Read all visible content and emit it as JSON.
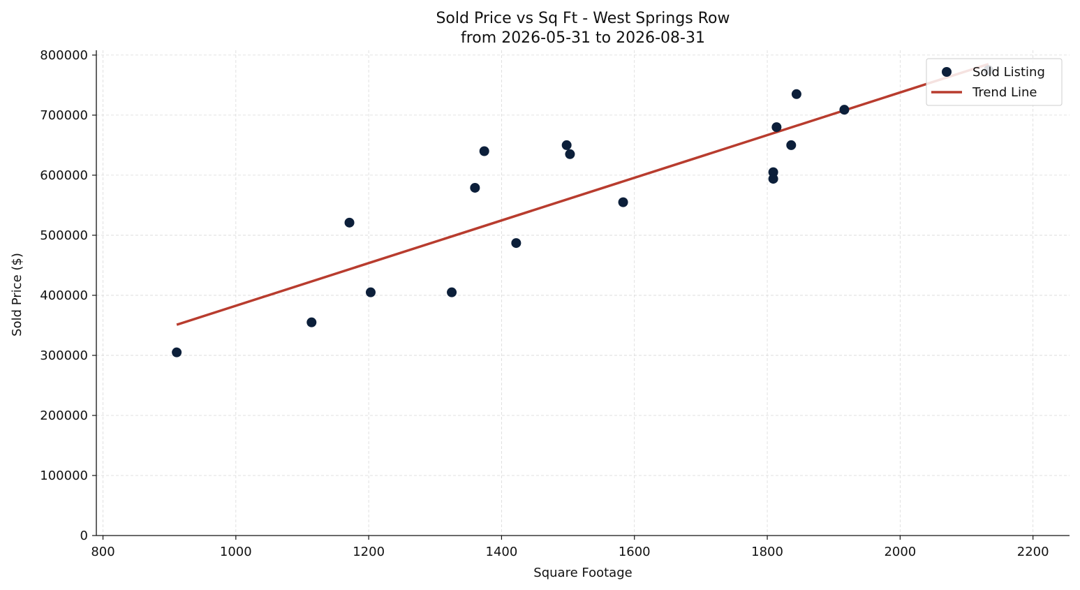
{
  "chart_data": {
    "type": "scatter",
    "title": "Sold Price vs Sq Ft - West Springs Row",
    "subtitle": "from 2026-05-31 to 2026-08-31",
    "xlabel": "Square Footage",
    "ylabel": "Sold Price ($)",
    "xlim": [
      790,
      2255
    ],
    "ylim": [
      0,
      808000
    ],
    "xticks": [
      800,
      1000,
      1200,
      1400,
      1600,
      1800,
      2000,
      2200
    ],
    "yticks": [
      0,
      100000,
      200000,
      300000,
      400000,
      500000,
      600000,
      700000,
      800000
    ],
    "grid": true,
    "legend_position": "top-right",
    "colors": {
      "points": "#0c1f3a",
      "trend": "#b83c2e",
      "grid": "#d9d9d9"
    },
    "series": [
      {
        "name": "Sold Listing",
        "kind": "scatter",
        "points": [
          [
            911,
            305000
          ],
          [
            1114,
            355000
          ],
          [
            1171,
            521000
          ],
          [
            1203,
            405000
          ],
          [
            1325,
            405000
          ],
          [
            1360,
            579000
          ],
          [
            1374,
            640000
          ],
          [
            1422,
            487000
          ],
          [
            1498,
            650000
          ],
          [
            1503,
            635000
          ],
          [
            1583,
            555000
          ],
          [
            1809,
            605000
          ],
          [
            1809,
            594000
          ],
          [
            1814,
            680000
          ],
          [
            1836,
            650000
          ],
          [
            1844,
            735000
          ],
          [
            1916,
            709000
          ],
          [
            2133,
            775000
          ]
        ]
      },
      {
        "name": "Trend Line",
        "kind": "line",
        "points": [
          [
            911,
            351000
          ],
          [
            2133,
            785000
          ]
        ]
      }
    ]
  }
}
